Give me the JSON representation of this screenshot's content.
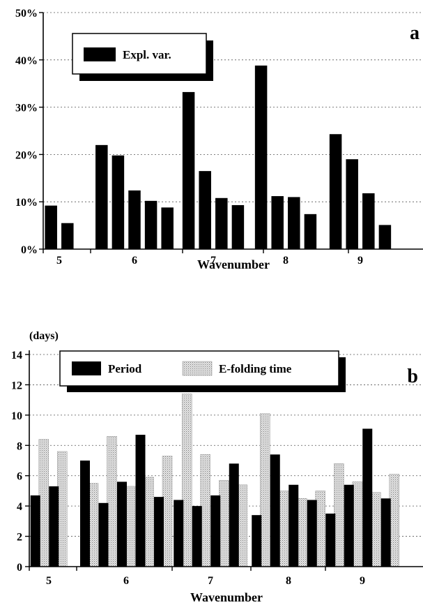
{
  "chart_data": [
    {
      "type": "bar",
      "panel_label": "a",
      "xlabel": "Wavenumber",
      "ylabel": "",
      "ylim": [
        0,
        50
      ],
      "yticks": [
        "0%",
        "10%",
        "20%",
        "30%",
        "40%",
        "50%"
      ],
      "grid": true,
      "legend_position": "top-left",
      "categories": [
        "5",
        "6",
        "7",
        "8",
        "9"
      ],
      "series": [
        {
          "name": "Expl. var.",
          "color": "#000000",
          "groups": [
            [
              9.2,
              5.5
            ],
            [
              22,
              19.8,
              12.4,
              10.2,
              8.8
            ],
            [
              33.2,
              16.5,
              10.8,
              9.3
            ],
            [
              38.8,
              11.2,
              11.0,
              7.4
            ],
            [
              24.3,
              19.0,
              11.8,
              5.1
            ]
          ]
        }
      ]
    },
    {
      "type": "bar",
      "panel_label": "b",
      "ylabel": "(days)",
      "xlabel": "Wavenumber",
      "ylim": [
        0,
        14
      ],
      "yticks": [
        "0",
        "2",
        "4",
        "6",
        "8",
        "10",
        "12",
        "14"
      ],
      "grid": true,
      "legend_position": "top-center",
      "categories": [
        "5",
        "6",
        "7",
        "8",
        "9"
      ],
      "series": [
        {
          "name": "Period",
          "color": "#000000",
          "groups": [
            [
              4.7,
              5.3
            ],
            [
              7.0,
              4.2,
              5.6,
              8.7,
              4.6
            ],
            [
              4.4,
              4.0,
              4.7,
              6.8
            ],
            [
              3.4,
              7.4,
              5.4,
              4.4
            ],
            [
              3.5,
              5.4,
              9.1,
              4.5
            ]
          ]
        },
        {
          "name": "E-folding time",
          "color": "#c8c8c8",
          "groups": [
            [
              8.4,
              7.6
            ],
            [
              5.5,
              8.6,
              5.3,
              5.9,
              7.3
            ],
            [
              11.4,
              7.4,
              5.7,
              5.4
            ],
            [
              10.1,
              5.0,
              4.5,
              5.0
            ],
            [
              6.8,
              5.6,
              4.9,
              6.1
            ]
          ]
        }
      ]
    }
  ]
}
